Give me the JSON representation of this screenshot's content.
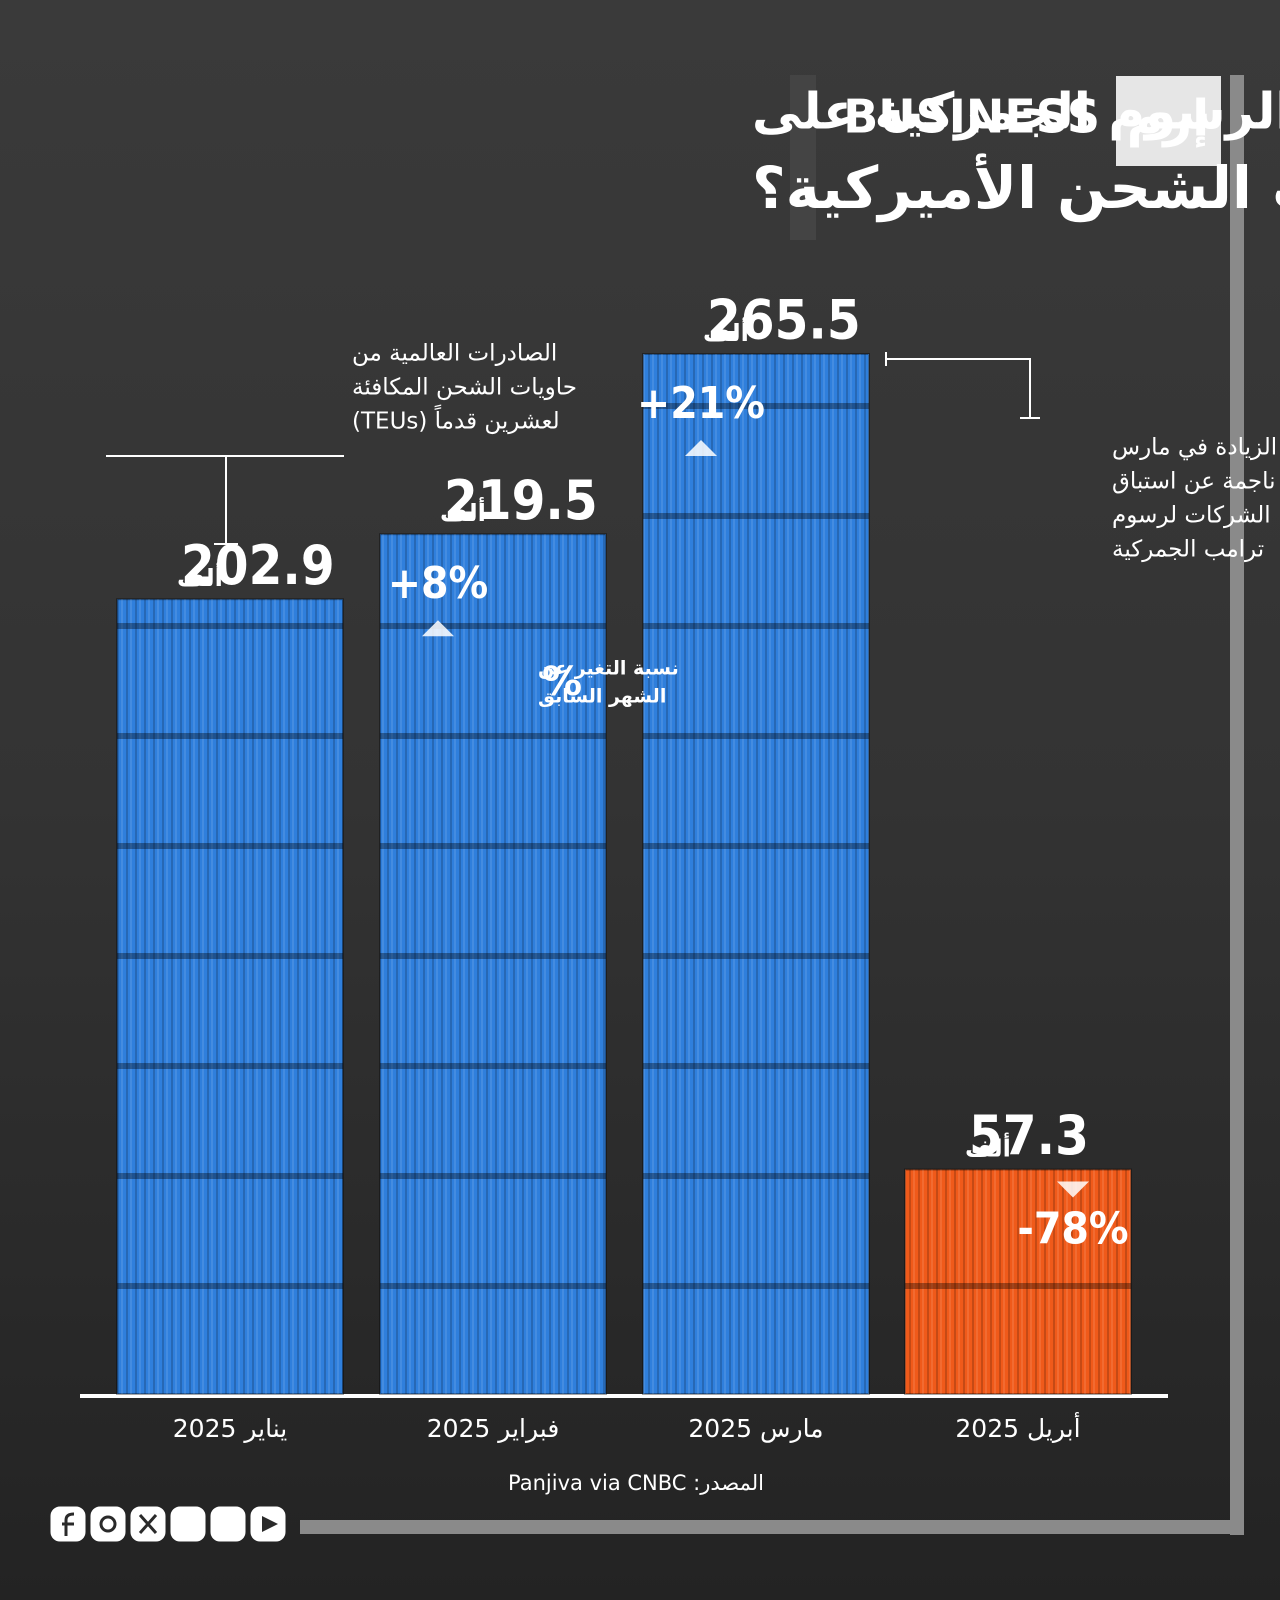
{
  "brand": {
    "name": "BUSINESS",
    "mark": "إرم"
  },
  "chart_data": {
    "type": "bar",
    "title_lines": [
      "كيف أثرت الرسوم الجمركية على",
      "صادرات الشحن الأميركية؟"
    ],
    "measure_note_lines": [
      "الصادرات العالمية من",
      "حاويات الشحن المكافئة",
      "لعشرين قدماً (TEUs)"
    ],
    "unit": "ألف",
    "categories": [
      "يناير 2025",
      "فبراير 2025",
      "مارس 2025",
      "أبريل 2025"
    ],
    "values": [
      202.9,
      219.5,
      265.5,
      57.3
    ],
    "colors": [
      "#2f7fdc",
      "#2f7fdc",
      "#2f7fdc",
      "#f05a1a"
    ],
    "changes": [
      null,
      8,
      21,
      -78
    ],
    "change_labels": [
      null,
      "+8%",
      "+21%",
      "-78%"
    ],
    "change_legend": {
      "symbol": "%",
      "lines": [
        "نسبة التغير عن",
        "الشهر السابق"
      ]
    },
    "annotation_lines": [
      "الزيادة في مارس",
      "ناجمة عن استباق",
      "الشركات لرسوم",
      "ترامب الجمركية"
    ],
    "source": "المصدر: Panjiva via CNBC"
  }
}
